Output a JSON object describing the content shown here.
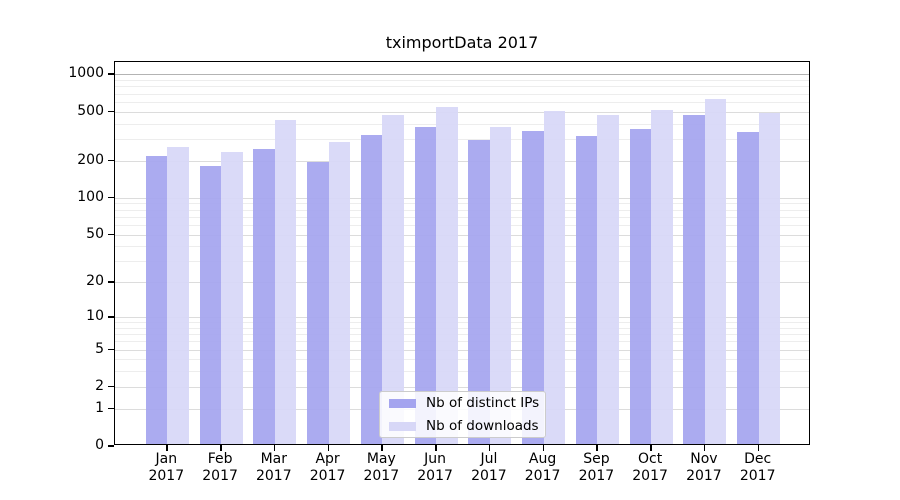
{
  "title": "tximportData 2017",
  "chart_data": {
    "type": "bar",
    "title": "tximportData 2017",
    "categories": [
      "Jan 2017",
      "Feb 2017",
      "Mar 2017",
      "Apr 2017",
      "May 2017",
      "Jun 2017",
      "Jul 2017",
      "Aug 2017",
      "Sep 2017",
      "Oct 2017",
      "Nov 2017",
      "Dec 2017"
    ],
    "series": [
      {
        "name": "Nb of distinct IPs",
        "color": "#a4a4ef",
        "values": [
          212,
          175,
          240,
          187,
          314,
          365,
          286,
          338,
          308,
          347,
          455,
          328
        ]
      },
      {
        "name": "Nb of downloads",
        "color": "#d7d7f7",
        "values": [
          249,
          229,
          410,
          272,
          455,
          522,
          364,
          491,
          455,
          500,
          610,
          470
        ]
      }
    ],
    "xlabel": "",
    "ylabel": "",
    "yscale": "log1p (symlog-like: y position proportional to ln(1+value))",
    "yticks": [
      0,
      1,
      2,
      5,
      10,
      20,
      50,
      100,
      200,
      500,
      1000
    ],
    "yminorticks": [
      3,
      4,
      6,
      7,
      8,
      9,
      30,
      40,
      60,
      70,
      80,
      90,
      300,
      400,
      600,
      700,
      800,
      900
    ],
    "ylim": [
      0,
      1240
    ],
    "grid": "horizontal major+minor, light gray; top line at 1000 darker",
    "legend_position": "inside plot, lower center",
    "colors": {
      "grid_major": "#dcdcdc",
      "grid_minor": "#ededed",
      "grid_1000_line": "#b3b3b3",
      "axis_frame": "#000000",
      "background": "#ffffff"
    }
  }
}
